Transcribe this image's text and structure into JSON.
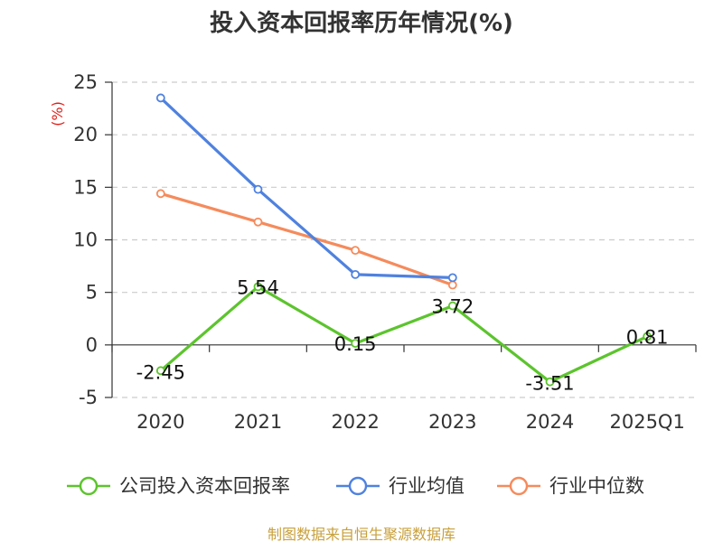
{
  "chart_data": {
    "type": "line",
    "title": "投入资本回报率历年情况(%)",
    "ylabel": "(%)",
    "categories": [
      "2020",
      "2021",
      "2022",
      "2023",
      "2024",
      "2025Q1"
    ],
    "ylim": [
      -5,
      25
    ],
    "yticks": [
      25,
      20,
      15,
      10,
      5,
      0,
      -5
    ],
    "grid": true,
    "legend_position": "bottom",
    "series": [
      {
        "name": "公司投入资本回报率",
        "color": "#5cc42d",
        "values": [
          -2.45,
          5.54,
          0.15,
          3.72,
          -3.51,
          0.81
        ],
        "labels": [
          "-2.45",
          "5.54",
          "0.15",
          "3.72",
          "-3.51",
          "0.81"
        ]
      },
      {
        "name": "行业均值",
        "color": "#4f82df",
        "values": [
          23.5,
          14.8,
          6.7,
          6.4,
          null,
          null
        ]
      },
      {
        "name": "行业中位数",
        "color": "#f58b5c",
        "values": [
          14.4,
          11.7,
          9.0,
          5.7,
          null,
          null
        ]
      }
    ],
    "source": "制图数据来自恒生聚源数据库"
  }
}
